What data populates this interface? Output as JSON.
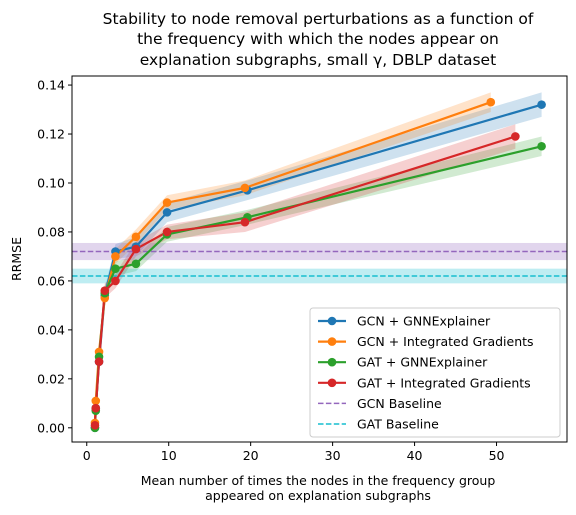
{
  "chart_data": {
    "type": "line",
    "title_lines": [
      "Stability to node removal perturbations as a function of",
      "the frequency with which the nodes appear on",
      "explanation subgraphs, small γ, DBLP dataset"
    ],
    "xlabel_lines": [
      "Mean number of times the nodes in the frequency group",
      "appeared on explanation subgraphs"
    ],
    "ylabel": "RRMSE",
    "xlim": [
      -1.8,
      58.6
    ],
    "ylim": [
      -0.0058,
      0.1437
    ],
    "xticks": [
      0,
      10,
      20,
      30,
      40,
      50
    ],
    "xtick_labels": [
      "0",
      "10",
      "20",
      "30",
      "40",
      "50"
    ],
    "yticks": [
      0.0,
      0.02,
      0.04,
      0.06,
      0.08,
      0.1,
      0.12,
      0.14
    ],
    "ytick_labels": [
      "0.00",
      "0.02",
      "0.04",
      "0.06",
      "0.08",
      "0.10",
      "0.12",
      "0.14"
    ],
    "grid": false,
    "legend_position": "lower right",
    "series": [
      {
        "name": "GCN + GNNExplainer",
        "color": "#1f77b4",
        "x": [
          1.0,
          1.1,
          1.5,
          2.2,
          3.5,
          6.0,
          9.8,
          19.6,
          55.5
        ],
        "y": [
          0.0,
          0.008,
          0.027,
          0.054,
          0.072,
          0.074,
          0.088,
          0.097,
          0.132
        ],
        "band": [
          0.003,
          0.003,
          0.003,
          0.003,
          0.003,
          0.004,
          0.004,
          0.004,
          0.005
        ]
      },
      {
        "name": "GCN + Integrated Gradients",
        "color": "#ff7f0e",
        "x": [
          1.0,
          1.1,
          1.5,
          2.2,
          3.5,
          6.0,
          9.8,
          19.3,
          49.3
        ],
        "y": [
          0.002,
          0.011,
          0.031,
          0.053,
          0.07,
          0.078,
          0.092,
          0.098,
          0.133
        ],
        "band": [
          0.003,
          0.003,
          0.003,
          0.003,
          0.003,
          0.003,
          0.003,
          0.003,
          0.004
        ]
      },
      {
        "name": "GAT + GNNExplainer",
        "color": "#2ca02c",
        "x": [
          1.0,
          1.1,
          1.5,
          2.2,
          3.5,
          6.0,
          9.8,
          19.6,
          55.5
        ],
        "y": [
          0.0,
          0.007,
          0.029,
          0.055,
          0.065,
          0.067,
          0.079,
          0.086,
          0.115
        ],
        "band": [
          0.003,
          0.003,
          0.003,
          0.003,
          0.003,
          0.003,
          0.003,
          0.003,
          0.004
        ]
      },
      {
        "name": "GAT + Integrated Gradients",
        "color": "#d62728",
        "x": [
          1.0,
          1.1,
          1.5,
          2.2,
          3.5,
          6.0,
          9.8,
          19.3,
          52.3
        ],
        "y": [
          0.001,
          0.008,
          0.027,
          0.056,
          0.06,
          0.073,
          0.08,
          0.084,
          0.119
        ],
        "band": [
          0.003,
          0.003,
          0.003,
          0.003,
          0.003,
          0.003,
          0.003,
          0.004,
          0.005
        ]
      }
    ],
    "baselines": [
      {
        "name": "GCN Baseline",
        "color": "#9467bd",
        "y": 0.072,
        "band": 0.0035
      },
      {
        "name": "GAT Baseline",
        "color": "#17becf",
        "y": 0.062,
        "band": 0.003
      }
    ]
  }
}
